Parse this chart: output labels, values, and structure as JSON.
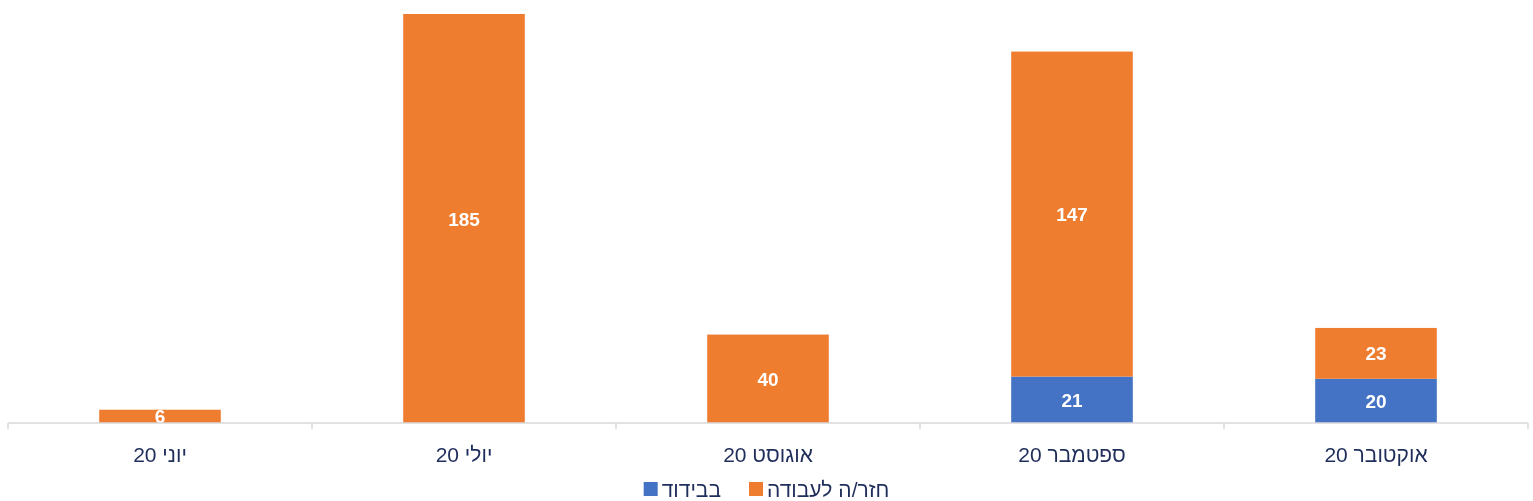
{
  "chart_data": {
    "type": "bar",
    "stacked": true,
    "categories": [
      "יוני 20",
      "יולי 20",
      "אוגוסט 20",
      "ספטמבר 20",
      "אוקטובר 20"
    ],
    "series": [
      {
        "name": "בבידוד",
        "color": "#4472c4",
        "values": [
          null,
          null,
          null,
          21,
          20
        ]
      },
      {
        "name": "חזר/ה לעבודה",
        "color": "#ef7d2f",
        "values": [
          6,
          185,
          40,
          147,
          23
        ]
      }
    ],
    "data_labels": true,
    "legend": "bottom"
  }
}
